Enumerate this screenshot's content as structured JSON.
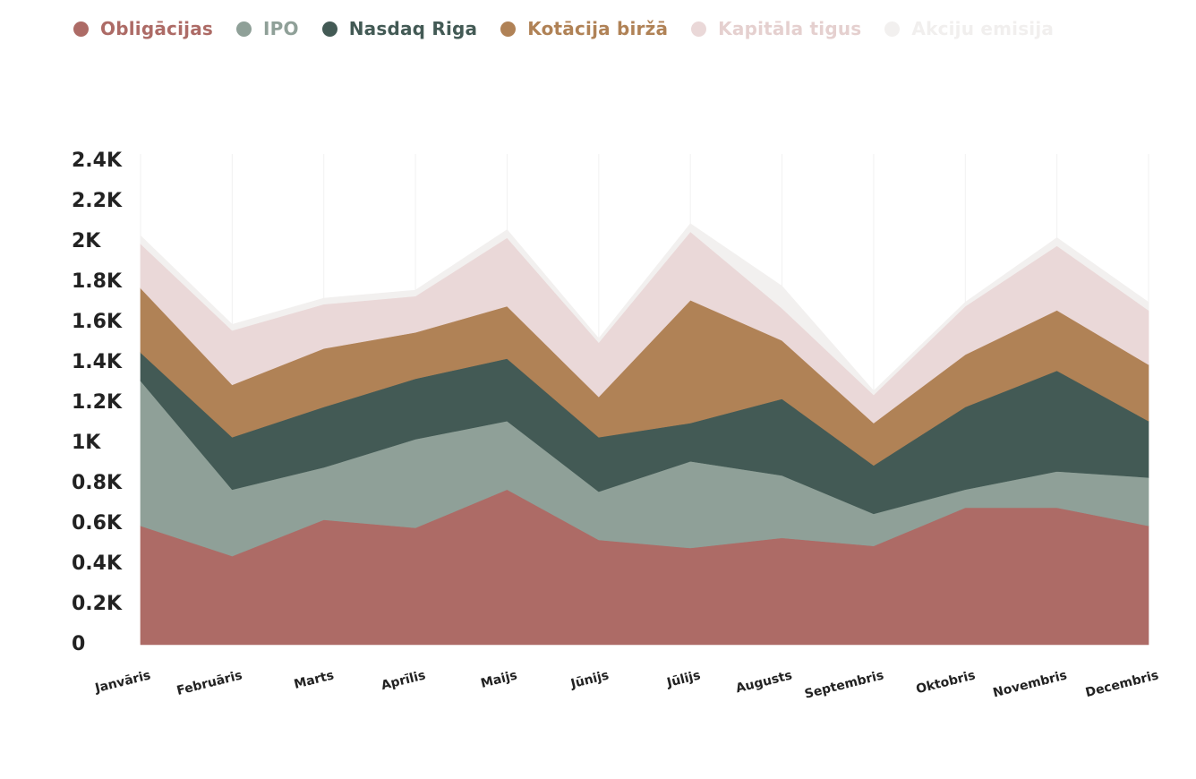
{
  "chart_data": {
    "type": "area",
    "stacked": true,
    "title": "",
    "xlabel": "",
    "ylabel": "",
    "ylim": [
      0,
      2400
    ],
    "grid": "vertical",
    "legend_position": "top-left",
    "y_ticks": [
      {
        "value": 0,
        "label": "0"
      },
      {
        "value": 200,
        "label": "0.2K"
      },
      {
        "value": 400,
        "label": "0.4K"
      },
      {
        "value": 600,
        "label": "0.6K"
      },
      {
        "value": 800,
        "label": "0.8K"
      },
      {
        "value": 1000,
        "label": "1K"
      },
      {
        "value": 1200,
        "label": "1.2K"
      },
      {
        "value": 1400,
        "label": "1.4K"
      },
      {
        "value": 1600,
        "label": "1.6K"
      },
      {
        "value": 1800,
        "label": "1.8K"
      },
      {
        "value": 2000,
        "label": "2K"
      },
      {
        "value": 2200,
        "label": "2.2K"
      },
      {
        "value": 2400,
        "label": "2.4K"
      }
    ],
    "categories": [
      "Janvāris",
      "Februāris",
      "Marts",
      "Aprīlis",
      "Maijs",
      "Jūnijs",
      "Jūlijs",
      "Augusts",
      "Septembris",
      "Oktobris",
      "Novembris",
      "Decembris"
    ],
    "series": [
      {
        "name": "Obligācijas",
        "color": "#ad6b66",
        "label_color": "#ad6b66",
        "values": [
          590,
          440,
          620,
          580,
          770,
          520,
          480,
          530,
          490,
          680,
          680,
          590
        ]
      },
      {
        "name": "IPO",
        "color": "#8fa098",
        "label_color": "#8fa098",
        "values": [
          720,
          330,
          260,
          440,
          340,
          240,
          430,
          310,
          160,
          90,
          180,
          240
        ]
      },
      {
        "name": "Nasdaq Riga",
        "color": "#435a55",
        "label_color": "#435a55",
        "values": [
          140,
          260,
          300,
          300,
          310,
          270,
          190,
          380,
          240,
          410,
          500,
          280
        ]
      },
      {
        "name": "Kotācija biržā",
        "color": "#b08256",
        "label_color": "#b08256",
        "values": [
          320,
          260,
          290,
          230,
          260,
          200,
          610,
          290,
          210,
          260,
          300,
          280
        ]
      },
      {
        "name": "Kapitāla tigus",
        "color": "#ead8d8",
        "label_color": "#e5d0cf",
        "values": [
          220,
          270,
          220,
          180,
          340,
          270,
          340,
          160,
          140,
          240,
          320,
          270
        ]
      },
      {
        "name": "Akciju emisija",
        "color": "#f2f0ef",
        "label_color": "#f1efee",
        "values": [
          40,
          30,
          30,
          30,
          40,
          20,
          40,
          110,
          20,
          20,
          40,
          40
        ]
      }
    ]
  }
}
